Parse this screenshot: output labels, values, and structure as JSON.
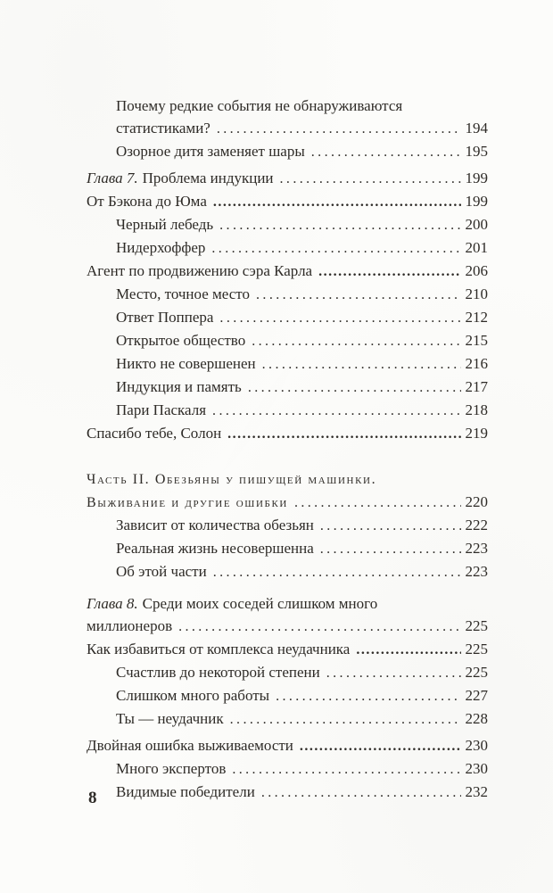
{
  "colors": {
    "text": "#2e2b27",
    "paper": "#fcfcfa"
  },
  "toc": {
    "rows": [
      {
        "indent": 1,
        "label": "Почему редкие события не обнаруживаются"
      },
      {
        "indent": 1,
        "label": "статистиками?",
        "page": "194"
      },
      {
        "indent": 1,
        "label": "Озорное дитя заменяет шары",
        "page": "195"
      },
      {
        "indent": 0,
        "prefix": "Глава 7.",
        "label": "Проблема индукции",
        "page": "199",
        "gap": "s"
      },
      {
        "indent": 0,
        "label": "От Бэкона до Юма",
        "page": "199",
        "bold_dots": true
      },
      {
        "indent": 1,
        "label": "Черный лебедь",
        "page": "200"
      },
      {
        "indent": 1,
        "label": "Нидерхоффер",
        "page": "201"
      },
      {
        "indent": 0,
        "label": "Агент по продвижению сэра Карла",
        "page": "206",
        "bold_dots": true
      },
      {
        "indent": 1,
        "label": "Место, точное место",
        "page": "210"
      },
      {
        "indent": 1,
        "label": "Ответ Поппера",
        "page": "212"
      },
      {
        "indent": 1,
        "label": "Открытое общество",
        "page": "215"
      },
      {
        "indent": 1,
        "label": "Никто не совершенен",
        "page": "216"
      },
      {
        "indent": 1,
        "label": "Индукция и память",
        "page": "217"
      },
      {
        "indent": 1,
        "label": "Пари Паскаля",
        "page": "218"
      },
      {
        "indent": 0,
        "label": "Спасибо тебе, Солон",
        "page": "219",
        "bold_dots": true
      },
      {
        "indent": 0,
        "label": "Часть II. Обезьяны у пишущей машинки.",
        "smallcaps": true,
        "gap": "l"
      },
      {
        "indent": 0,
        "label": "Выживание и другие ошибки",
        "page": "220",
        "smallcaps": true
      },
      {
        "indent": 1,
        "label": "Зависит от количества обезьян",
        "page": "222"
      },
      {
        "indent": 1,
        "label": "Реальная жизнь несовершенна",
        "page": "223"
      },
      {
        "indent": 1,
        "label": "Об этой части",
        "page": "223"
      },
      {
        "indent": 0,
        "prefix": "Глава 8.",
        "label": "Среди моих соседей слишком много",
        "gap": "m"
      },
      {
        "indent": 0,
        "label": "миллионеров",
        "page": "225"
      },
      {
        "indent": 0,
        "label": "Как избавиться от комплекса неудачника",
        "page": "225",
        "bold_dots": true
      },
      {
        "indent": 1,
        "label": "Счастлив до некоторой степени",
        "page": "225"
      },
      {
        "indent": 1,
        "label": "Слишком много работы",
        "page": "227"
      },
      {
        "indent": 1,
        "label": "Ты — неудачник",
        "page": "228"
      },
      {
        "indent": 0,
        "label": "Двойная ошибка выживаемости",
        "page": "230",
        "bold_dots": true,
        "gap": "s"
      },
      {
        "indent": 1,
        "label": "Много экспертов",
        "page": "230"
      },
      {
        "indent": 1,
        "label": "Видимые победители",
        "page": "232"
      }
    ]
  },
  "footer": {
    "page_number": "8"
  }
}
